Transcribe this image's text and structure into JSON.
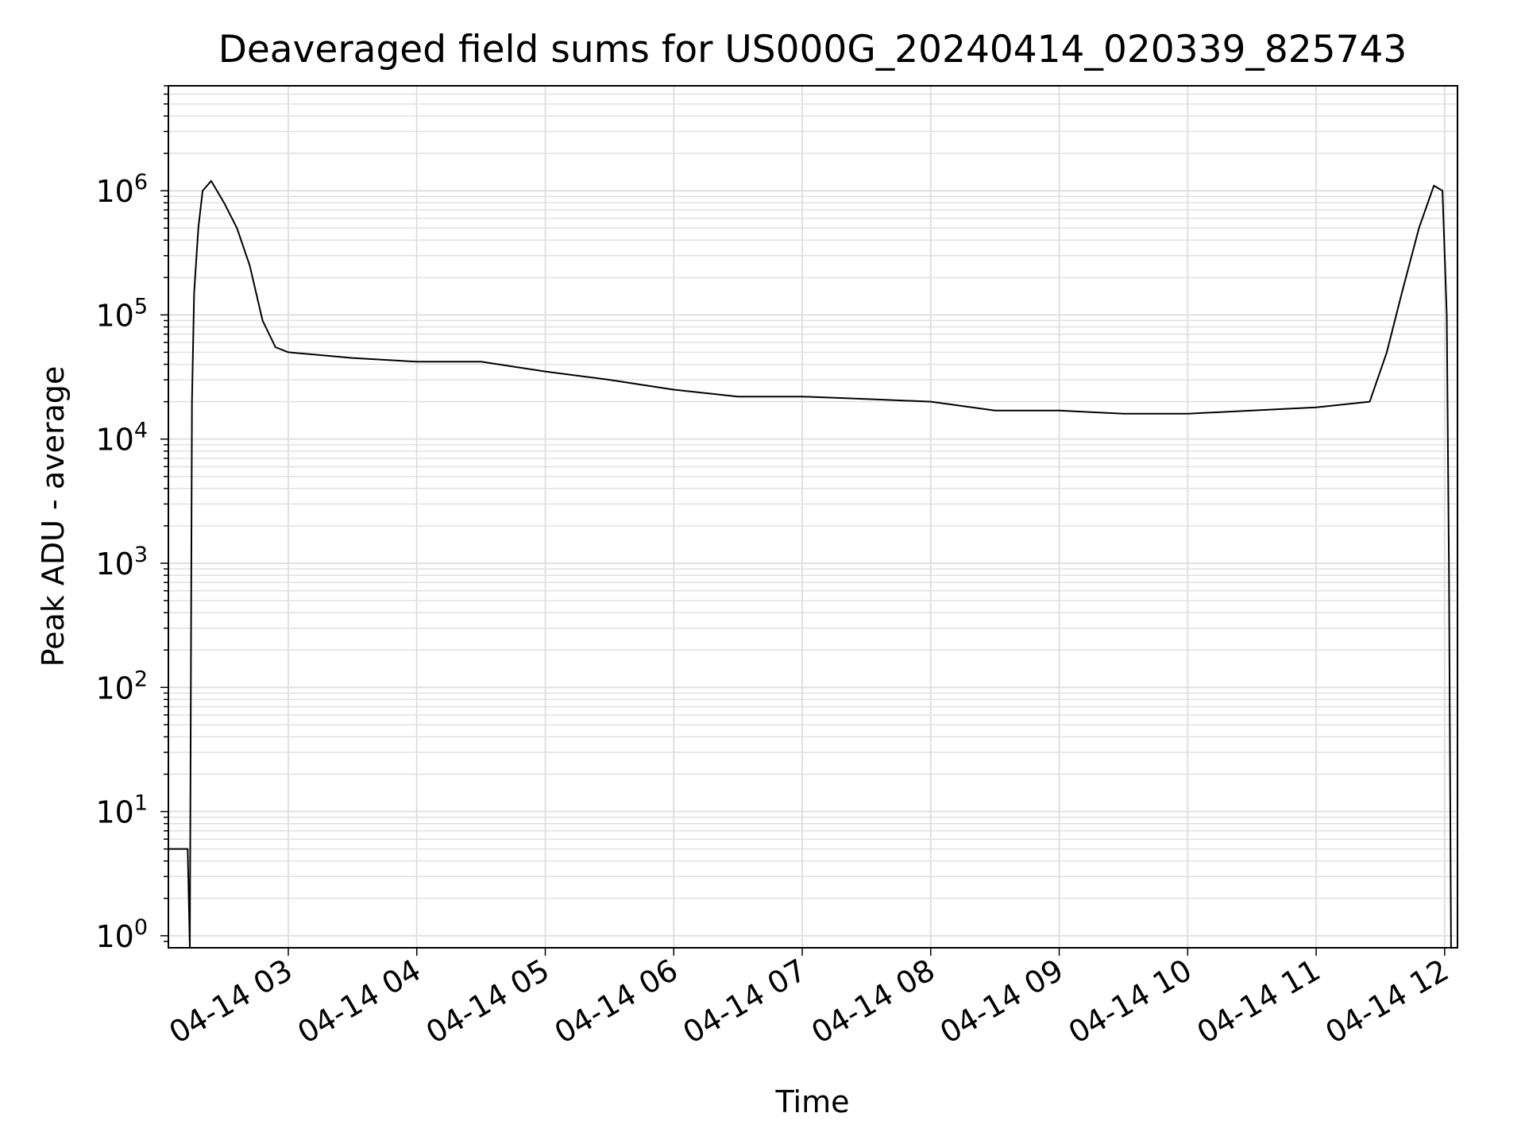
{
  "chart_data": {
    "type": "line",
    "title": "Deaveraged field sums for US000G_20240414_020339_825743",
    "xlabel": "Time",
    "ylabel": "Peak ADU - average",
    "y_scale": "log",
    "ylim": [
      0.8,
      7000000
    ],
    "xlim": [
      "04-14 02:04",
      "04-14 12:06"
    ],
    "grid": true,
    "line_color": "#000000",
    "grid_color": "#e0e0e0",
    "x_ticks": [
      {
        "value": "04-14 03:00",
        "label": "04-14 03"
      },
      {
        "value": "04-14 04:00",
        "label": "04-14 04"
      },
      {
        "value": "04-14 05:00",
        "label": "04-14 05"
      },
      {
        "value": "04-14 06:00",
        "label": "04-14 06"
      },
      {
        "value": "04-14 07:00",
        "label": "04-14 07"
      },
      {
        "value": "04-14 08:00",
        "label": "04-14 08"
      },
      {
        "value": "04-14 09:00",
        "label": "04-14 09"
      },
      {
        "value": "04-14 10:00",
        "label": "04-14 10"
      },
      {
        "value": "04-14 11:00",
        "label": "04-14 11"
      },
      {
        "value": "04-14 12:00",
        "label": "04-14 12"
      }
    ],
    "y_ticks": [
      {
        "value": 1,
        "base": "10",
        "exp": "0"
      },
      {
        "value": 10,
        "base": "10",
        "exp": "1"
      },
      {
        "value": 100,
        "base": "10",
        "exp": "2"
      },
      {
        "value": 1000,
        "base": "10",
        "exp": "3"
      },
      {
        "value": 10000,
        "base": "10",
        "exp": "4"
      },
      {
        "value": 100000,
        "base": "10",
        "exp": "5"
      },
      {
        "value": 1000000,
        "base": "10",
        "exp": "6"
      }
    ],
    "series": [
      {
        "points": [
          [
            "04-14 02:04",
            5
          ],
          [
            "04-14 02:13",
            5
          ],
          [
            "04-14 02:14",
            0.8
          ],
          [
            "04-14 02:15",
            20000
          ],
          [
            "04-14 02:16",
            150000
          ],
          [
            "04-14 02:18",
            500000
          ],
          [
            "04-14 02:20",
            1000000
          ],
          [
            "04-14 02:24",
            1200000
          ],
          [
            "04-14 02:30",
            800000
          ],
          [
            "04-14 02:36",
            500000
          ],
          [
            "04-14 02:42",
            250000
          ],
          [
            "04-14 02:48",
            90000
          ],
          [
            "04-14 02:54",
            55000
          ],
          [
            "04-14 03:00",
            50000
          ],
          [
            "04-14 03:30",
            45000
          ],
          [
            "04-14 04:00",
            42000
          ],
          [
            "04-14 04:30",
            42000
          ],
          [
            "04-14 05:00",
            35000
          ],
          [
            "04-14 05:30",
            30000
          ],
          [
            "04-14 06:00",
            25000
          ],
          [
            "04-14 06:30",
            22000
          ],
          [
            "04-14 07:00",
            22000
          ],
          [
            "04-14 07:30",
            21000
          ],
          [
            "04-14 08:00",
            20000
          ],
          [
            "04-14 08:30",
            17000
          ],
          [
            "04-14 09:00",
            17000
          ],
          [
            "04-14 09:30",
            16000
          ],
          [
            "04-14 10:00",
            16000
          ],
          [
            "04-14 10:30",
            17000
          ],
          [
            "04-14 11:00",
            18000
          ],
          [
            "04-14 11:25",
            20000
          ],
          [
            "04-14 11:33",
            50000
          ],
          [
            "04-14 11:40",
            150000
          ],
          [
            "04-14 11:48",
            500000
          ],
          [
            "04-14 11:55",
            1100000
          ],
          [
            "04-14 11:59",
            1000000
          ],
          [
            "04-14 12:01",
            100000
          ],
          [
            "04-14 12:02",
            1000
          ],
          [
            "04-14 12:03",
            0.8
          ]
        ]
      }
    ]
  }
}
